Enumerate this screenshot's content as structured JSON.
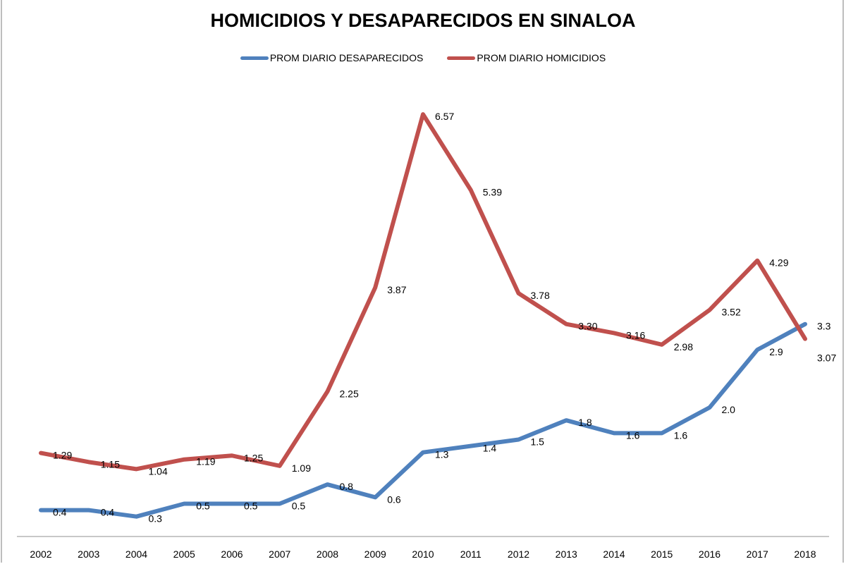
{
  "chart_data": {
    "type": "line",
    "title": "HOMICIDIOS Y DESAPARECIDOS EN SINALOA",
    "categories": [
      "2002",
      "2003",
      "2004",
      "2005",
      "2006",
      "2007",
      "2008",
      "2009",
      "2010",
      "2011",
      "2012",
      "2013",
      "2014",
      "2015",
      "2016",
      "2017",
      "2018"
    ],
    "legend_position": "top",
    "grid": false,
    "series": [
      {
        "name": "PROM DIARIO DESAPARECIDOS",
        "color": "#4f81bd",
        "values": [
          0.4,
          0.4,
          0.3,
          0.5,
          0.5,
          0.5,
          0.8,
          0.6,
          1.3,
          1.4,
          1.5,
          1.8,
          1.6,
          1.6,
          2.0,
          2.9,
          3.3
        ],
        "labels": [
          "0.4",
          "0.4",
          "0.3",
          "0.5",
          "0.5",
          "0.5",
          "0.8",
          "0.6",
          "1.3",
          "1.4",
          "1.5",
          "1.8",
          "1.6",
          "1.6",
          "2.0",
          "2.9",
          "3.3"
        ]
      },
      {
        "name": "PROM DIARIO HOMICIDIOS",
        "color": "#c0504d",
        "values": [
          1.29,
          1.15,
          1.04,
          1.19,
          1.25,
          1.09,
          2.25,
          3.87,
          6.57,
          5.39,
          3.78,
          3.3,
          3.16,
          2.98,
          3.52,
          4.29,
          3.07
        ],
        "labels": [
          "1.29",
          "1.15",
          "1.04",
          "1.19",
          "1.25",
          "1.09",
          "2.25",
          "3.87",
          "6.57",
          "5.39",
          "3.78",
          "3.30",
          "3.16",
          "2.98",
          "3.52",
          "4.29",
          "3.07"
        ]
      }
    ]
  }
}
